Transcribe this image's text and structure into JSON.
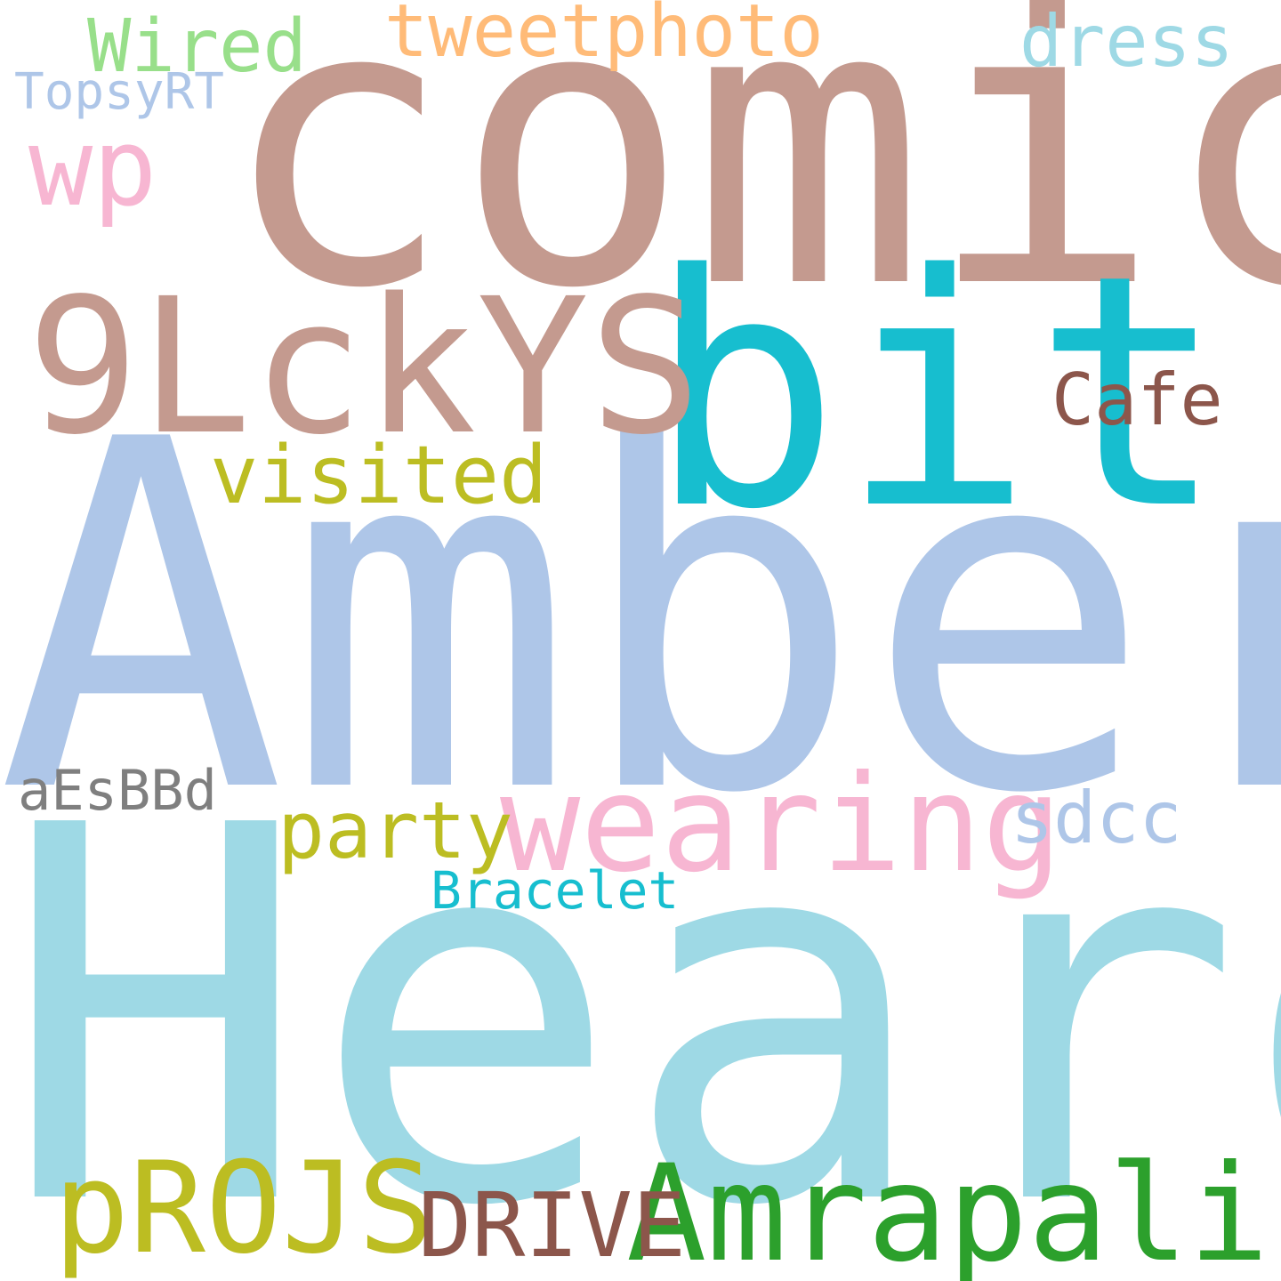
{
  "word_cloud": {
    "words": [
      {
        "text": "comic",
        "color": "#c49a8f"
      },
      {
        "text": "Amber",
        "color": "#aec6e8"
      },
      {
        "text": "Heard",
        "color": "#9ed9e5"
      },
      {
        "text": "bit",
        "color": "#17becf"
      },
      {
        "text": "9LckYS",
        "color": "#c49a8f"
      },
      {
        "text": "wearing",
        "color": "#f7b6d2"
      },
      {
        "text": "Amrapali",
        "color": "#2ca02c"
      },
      {
        "text": "pROJS",
        "color": "#bcbd22"
      },
      {
        "text": "wp",
        "color": "#f7b6d2"
      },
      {
        "text": "visited",
        "color": "#bcbd22"
      },
      {
        "text": "party",
        "color": "#bcbd22"
      },
      {
        "text": "DRIVE",
        "color": "#8c564b"
      },
      {
        "text": "Cafe",
        "color": "#8c564b"
      },
      {
        "text": "sdcc",
        "color": "#aec6e8"
      },
      {
        "text": "tweetphoto",
        "color": "#ffbb78"
      },
      {
        "text": "dress",
        "color": "#9ed9e5"
      },
      {
        "text": "Wired",
        "color": "#98df8a"
      },
      {
        "text": "TopsyRT",
        "color": "#aec6e8"
      },
      {
        "text": "aEsBBd",
        "color": "#7f7f7f"
      },
      {
        "text": "Bracelet",
        "color": "#17becf"
      }
    ]
  }
}
